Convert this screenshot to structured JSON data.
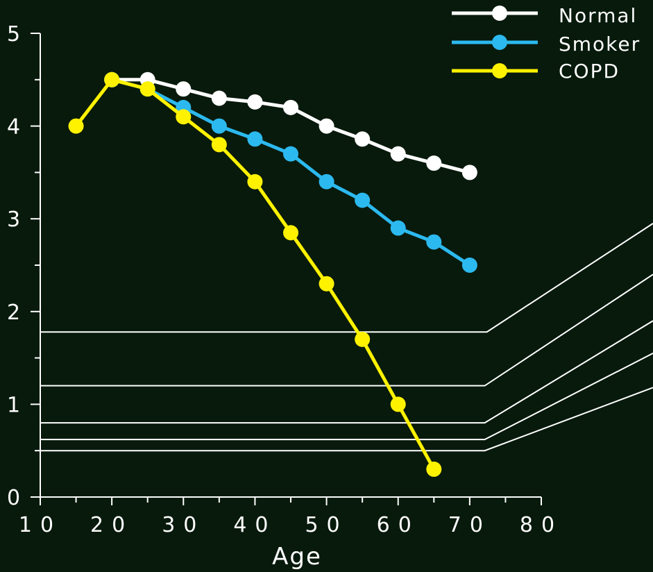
{
  "colors": {
    "background": "#081a0c",
    "axis": "#ffffff",
    "normal": "#ffffff",
    "smoker": "#2cb9ef",
    "copd": "#fff200",
    "reference_lines": "#ffffff"
  },
  "chart_data": {
    "type": "line",
    "xlabel": "Age",
    "ylabel": "",
    "xlim": [
      10,
      80
    ],
    "ylim": [
      0,
      5
    ],
    "x_ticks": [
      "10",
      "20",
      "30",
      "40",
      "50",
      "60",
      "70",
      "80"
    ],
    "y_ticks": [
      "0",
      "1",
      "2",
      "3",
      "4",
      "5"
    ],
    "legend_position": "top-right",
    "series": [
      {
        "name": "Normal",
        "color_key": "normal",
        "x": [
          20,
          25,
          30,
          35,
          40,
          45,
          50,
          55,
          60,
          65,
          70
        ],
        "y": [
          4.5,
          4.5,
          4.4,
          4.3,
          4.26,
          4.2,
          4.0,
          3.86,
          3.7,
          3.6,
          3.5
        ]
      },
      {
        "name": "Smoker",
        "color_key": "smoker",
        "x": [
          20,
          25,
          30,
          35,
          40,
          45,
          50,
          55,
          60,
          65,
          70
        ],
        "y": [
          4.5,
          4.4,
          4.2,
          4.0,
          3.86,
          3.7,
          3.4,
          3.2,
          2.9,
          2.75,
          2.5
        ]
      },
      {
        "name": "COPD",
        "color_key": "copd",
        "x": [
          15,
          20,
          25,
          30,
          35,
          40,
          45,
          50,
          55,
          60,
          65
        ],
        "y": [
          4.0,
          4.5,
          4.4,
          4.1,
          3.8,
          3.4,
          2.85,
          2.3,
          1.7,
          1.0,
          0.3
        ]
      }
    ],
    "reference_lines": [
      {
        "y": 1.78,
        "x_end": 72.4,
        "edge_y": 2.95
      },
      {
        "y": 1.2,
        "x_end": 72.1,
        "edge_y": 2.4
      },
      {
        "y": 0.8,
        "x_end": 72.1,
        "edge_y": 1.9
      },
      {
        "y": 0.62,
        "x_end": 72.1,
        "edge_y": 1.55
      },
      {
        "y": 0.5,
        "x_end": 72.1,
        "edge_y": 1.18
      }
    ]
  }
}
